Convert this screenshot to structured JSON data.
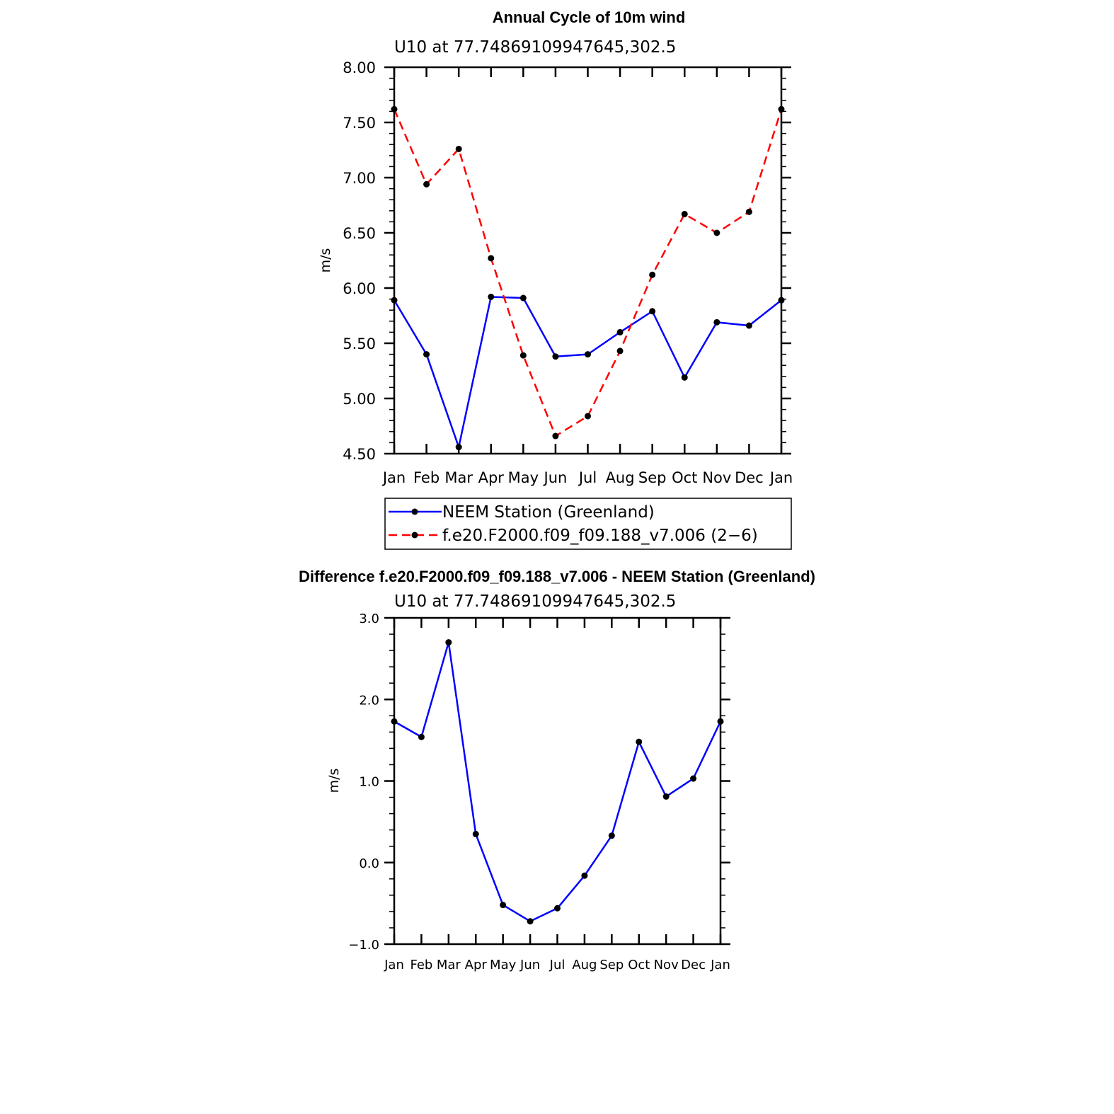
{
  "figure": {
    "months": [
      "Jan",
      "Feb",
      "Mar",
      "Apr",
      "May",
      "Jun",
      "Jul",
      "Aug",
      "Sep",
      "Oct",
      "Nov",
      "Dec",
      "Jan"
    ]
  },
  "chart_data": [
    {
      "type": "line",
      "title": "Annual Cycle of 10m wind",
      "subtitle": "U10 at 77.74869109947645,302.5",
      "xlabel": "",
      "ylabel": "m/s",
      "categories": [
        "Jan",
        "Feb",
        "Mar",
        "Apr",
        "May",
        "Jun",
        "Jul",
        "Aug",
        "Sep",
        "Oct",
        "Nov",
        "Dec",
        "Jan"
      ],
      "ylim": [
        4.5,
        8.0
      ],
      "yticks": [
        "4.50",
        "5.00",
        "5.50",
        "6.00",
        "6.50",
        "7.00",
        "7.50",
        "8.00"
      ],
      "grid": false,
      "legend": "below",
      "series": [
        {
          "name": "NEEM Station (Greenland)",
          "color": "#0000ff",
          "dash": "solid",
          "values": [
            5.89,
            5.4,
            4.56,
            5.92,
            5.91,
            5.38,
            5.4,
            5.6,
            5.79,
            5.19,
            5.69,
            5.66,
            5.89
          ]
        },
        {
          "name": "f.e20.F2000.f09_f09.188_v7.006 (2−6)",
          "color": "#ff0000",
          "dash": "dashed",
          "values": [
            7.62,
            6.94,
            7.26,
            6.27,
            5.39,
            4.66,
            4.84,
            5.43,
            6.12,
            6.67,
            6.5,
            6.69,
            7.62
          ]
        }
      ]
    },
    {
      "type": "line",
      "title": "Difference f.e20.F2000.f09_f09.188_v7.006 - NEEM Station (Greenland)",
      "subtitle": "U10 at 77.74869109947645,302.5",
      "xlabel": "",
      "ylabel": "m/s",
      "categories": [
        "Jan",
        "Feb",
        "Mar",
        "Apr",
        "May",
        "Jun",
        "Jul",
        "Aug",
        "Sep",
        "Oct",
        "Nov",
        "Dec",
        "Jan"
      ],
      "ylim": [
        -1.0,
        3.0
      ],
      "yticks": [
        "−1.0",
        "0.0",
        "1.0",
        "2.0",
        "3.0"
      ],
      "grid": false,
      "legend": "none",
      "series": [
        {
          "color": "#0000ff",
          "dash": "solid",
          "values": [
            1.73,
            1.54,
            2.7,
            0.35,
            -0.52,
            -0.72,
            -0.56,
            -0.16,
            0.33,
            1.48,
            0.81,
            1.03,
            1.73
          ]
        }
      ]
    }
  ]
}
